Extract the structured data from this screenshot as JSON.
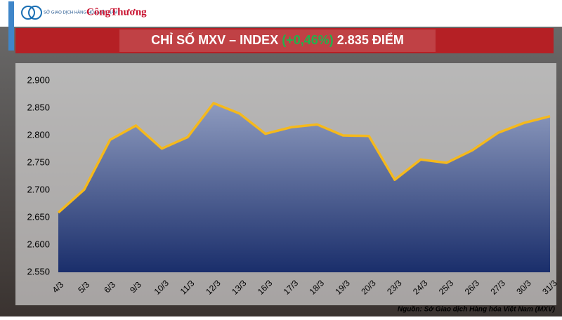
{
  "logo": {
    "exchange": "SỞ GIAO DỊCH HÀNG HÓA VIỆT NAM",
    "brand": "CôngThương"
  },
  "chart_data": {
    "type": "area",
    "title": "CHỈ SỐ MXV – INDEX",
    "title_change": "(+0,46%)",
    "title_value": "2.835 ĐIỂM",
    "categories": [
      "4/3",
      "5/3",
      "6/3",
      "9/3",
      "10/3",
      "11/3",
      "12/3",
      "13/3",
      "16/3",
      "17/3",
      "18/3",
      "19/3",
      "20/3",
      "23/3",
      "24/3",
      "25/3",
      "26/3",
      "27/3",
      "30/3",
      "31/3"
    ],
    "values": [
      2659,
      2701,
      2792,
      2818,
      2776,
      2797,
      2859,
      2840,
      2803,
      2815,
      2820,
      2800,
      2799,
      2719,
      2756,
      2750,
      2773,
      2805,
      2823,
      2835
    ],
    "color": "#f5b91c",
    "fill_top": "#8e9bbf",
    "fill_bottom": "#1a2e6b",
    "change_color": "#22b24c",
    "ylim": [
      2550,
      2900
    ],
    "yticks": [
      {
        "value": 2550,
        "label": "2.550"
      },
      {
        "value": 2600,
        "label": "2.600"
      },
      {
        "value": 2650,
        "label": "2.650"
      },
      {
        "value": 2700,
        "label": "2.700"
      },
      {
        "value": 2750,
        "label": "2.750"
      },
      {
        "value": 2800,
        "label": "2.800"
      },
      {
        "value": 2850,
        "label": "2.850"
      },
      {
        "value": 2900,
        "label": "2.900"
      }
    ],
    "source": "Nguồn: Sở Giao dịch Hàng hóa Việt Nam (MXV)"
  }
}
